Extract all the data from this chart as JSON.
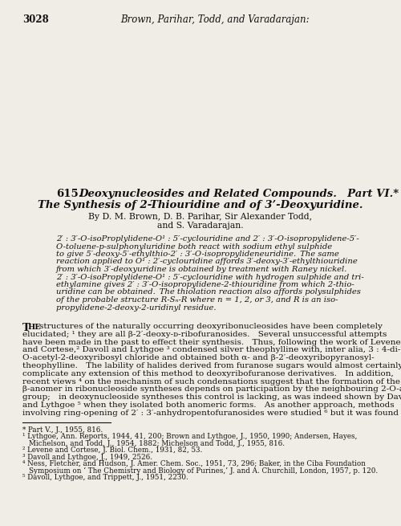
{
  "background_color": "#f0ede6",
  "text_color": "#111111",
  "page_number": "3028",
  "header_text": "Brown, Parihar, Todd, and Varadarajan:",
  "title_number": "615.",
  "title_italic": "Deoxynucleosides and Related Compounds.  Part VI.*",
  "title_italic2": "The Synthesis of 2-Thiouridine and of 3’-Deoxyuridine.",
  "authors_line1": "By D. M. Brown, D. B. Parihar, Sir Alexander Todd,",
  "authors_line2": "and S. Varadarajan.",
  "abstract_lines": [
    "2′ : 3′-O-isoProplylidene-O¹ : 5′-cyclouridine and 2′ : 3′-O-isopropylidene-5′-",
    "O-toluene-p-sulphonyluridine both react with sodium ethyl sulphide",
    "to give 5′-deoxy-5′-ethylthio-2′ : 3′-O-isopropylideneuridine. The same",
    "reaction applied to O¹ : 2′-cyclouridine affords 3′-deoxy-3′-ethylthiouridine",
    "from which 3′-deoxyuridine is obtained by treatment with Raney nickel.",
    "2′ : 3′-O-isoProplylidene-O¹ : 5′-cyclouridine with hydrogen sulphide and tri-",
    "ethylamine gives 2′ : 3′-O-isopropylidene-2-thiouridine from which 2-thio-",
    "uridine can be obtained. The thiolation reaction also affords polysulphides",
    "of the probable structure R-Sₙ-R where n = 1, 2, or 3, and R is an iso-",
    "propylidene-2-deoxy-2-uridinyl residue."
  ],
  "body_lines": [
    "structures of the naturally occurring deoxyribonucleosides have been completely",
    "elucidated; ¹ they are all β-2′-deoxy-ᴅ-ribofuranosides. Several unsuccessful attempts",
    "have been made in the past to effect their synthesis. Thus, following the work of Levene",
    "and Cortese,² Davoll and Lythgoe ³ condensed silver theophylline with, inter alia, 3 : 4-di-",
    "O-acetyl-2-deoxyribosyl chloride and obtained both α- and β-2′-deoxyribopyranosyl-",
    "theophylline. The lability of halides derived from furanose sugars would almost certainly",
    "complicate any extension of this method to deoxyribofuranose derivatives. In addition,",
    "recent views ⁴ on the mechanism of such condensations suggest that the formation of the",
    "β-anomer in ribonucleoside syntheses depends on participation by the neighbouring 2-O-acyl",
    "group; in deoxynucleoside syntheses this control is lacking, as was indeed shown by Davoll",
    "and Lythgoe ⁵ when they isolated both anomeric forms. As another approach, methods",
    "involving ring-opening of 2′ : 3′-anhydropentofuranosides were studied ⁶ but it was found"
  ],
  "footnote_lines": [
    "* Part V., J., 1955, 816.",
    "¹ Lythgoe, Ann. Reports, 1944, 41, 200; Brown and Lythgoe, J., 1950, 1990; Andersen, Hayes,",
    "Michelson, and Todd, J., 1954, 1882; Michelson and Todd, J., 1955, 816.",
    "² Levene and Cortese, J. Biol. Chem., 1931, 82, 53.",
    "³ Davoll and Lythgoe, J., 1949, 2526.",
    "⁴ Ness, Fletcher, and Hudson, J. Amer. Chem. Soc., 1951, 73, 296; Baker, in the Ciba Foundation",
    "Symposium on ‘ The Chemistry and Biology of Purines,’ J. and A. Churchill, London, 1957, p. 120.",
    "⁵ Davoll, Lythgoe, and Trippett, J., 1951, 2230."
  ]
}
